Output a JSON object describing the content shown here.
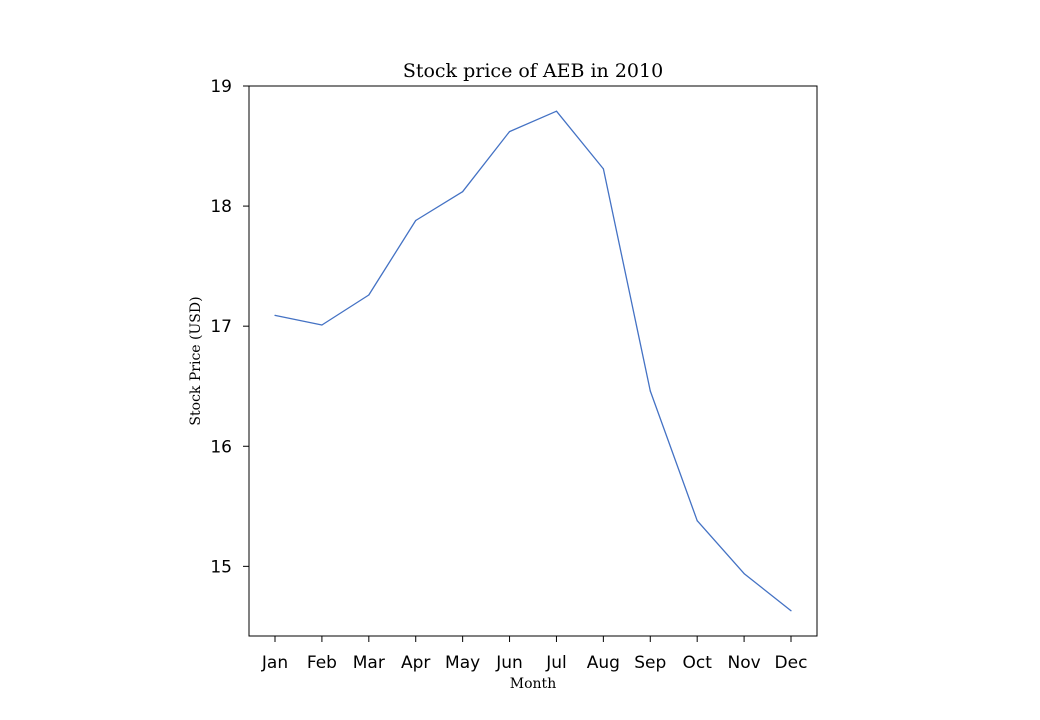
{
  "chart_data": {
    "type": "line",
    "title": "Stock price of AEB in 2010",
    "xlabel": "Month",
    "ylabel": "Stock Price (USD)",
    "categories": [
      "Jan",
      "Feb",
      "Mar",
      "Apr",
      "May",
      "Jun",
      "Jul",
      "Aug",
      "Sep",
      "Oct",
      "Nov",
      "Dec"
    ],
    "series": [
      {
        "values": [
          17.09,
          17.01,
          17.26,
          17.88,
          18.12,
          18.62,
          18.79,
          18.31,
          16.46,
          15.38,
          14.94,
          14.63
        ],
        "color": "#4472c4"
      }
    ],
    "ylim": [
      14.42,
      19.0
    ],
    "yticks": [
      15,
      16,
      17,
      18,
      19
    ],
    "ytick_labels": [
      "15",
      "16",
      "17",
      "18",
      "19"
    ],
    "grid": false,
    "legend": "none"
  }
}
